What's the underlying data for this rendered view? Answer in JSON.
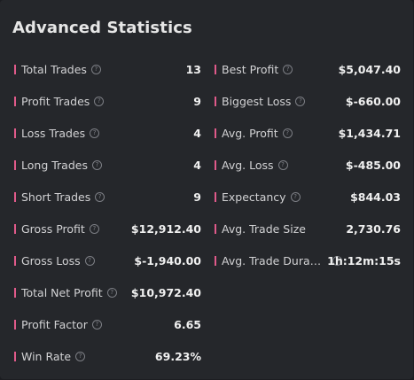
{
  "panel": {
    "title": "Advanced Statistics",
    "accent_color": "#e05a8a",
    "info_icon_glyph": "?"
  },
  "left_stats": [
    {
      "label": "Total Trades",
      "value": "13"
    },
    {
      "label": "Profit Trades",
      "value": "9"
    },
    {
      "label": "Loss Trades",
      "value": "4"
    },
    {
      "label": "Long Trades",
      "value": "4"
    },
    {
      "label": "Short Trades",
      "value": "9"
    },
    {
      "label": "Gross Profit",
      "value": "$12,912.40"
    },
    {
      "label": "Gross Loss",
      "value": "$-1,940.00"
    },
    {
      "label": "Total Net Profit",
      "value": "$10,972.40"
    },
    {
      "label": "Profit Factor",
      "value": "6.65"
    },
    {
      "label": "Win Rate",
      "value": "69.23%"
    }
  ],
  "right_stats": [
    {
      "label": "Best Profit",
      "value": "$5,047.40"
    },
    {
      "label": "Biggest Loss",
      "value": "$-660.00"
    },
    {
      "label": "Avg. Profit",
      "value": "$1,434.71"
    },
    {
      "label": "Avg. Loss",
      "value": "$-485.00"
    },
    {
      "label": "Expectancy",
      "value": "$844.03"
    },
    {
      "label": "Avg. Trade Size",
      "value": "2,730.76"
    },
    {
      "label": "Avg. Trade Duration",
      "value": "1h:12m:15s"
    }
  ]
}
